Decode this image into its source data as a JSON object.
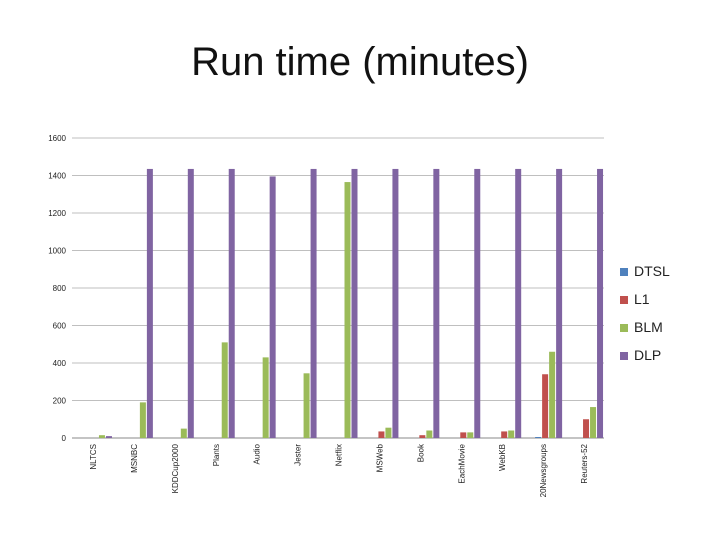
{
  "chart_data": {
    "type": "bar",
    "title": "Run time (minutes)",
    "xlabel": "",
    "ylabel": "",
    "ylim": [
      0,
      1600
    ],
    "yticks": [
      0,
      200,
      400,
      600,
      800,
      1000,
      1200,
      1400,
      1600
    ],
    "grid": true,
    "legend_position": "right",
    "categories": [
      "NLTCS",
      "MSNBC",
      "KDDCup2000",
      "Plants",
      "Audio",
      "Jester",
      "Netflix",
      "MSWeb",
      "Book",
      "EachMovie",
      "WebKB",
      "20Newsgroups",
      "Reuters-52"
    ],
    "series": [
      {
        "name": "DTSL",
        "color": "#4f81bd",
        "values": [
          0,
          0,
          0,
          0,
          0,
          0,
          0,
          0,
          0,
          0,
          0,
          5,
          0
        ]
      },
      {
        "name": "L1",
        "color": "#c0504d",
        "values": [
          0,
          0,
          0,
          0,
          0,
          0,
          0,
          35,
          15,
          30,
          35,
          340,
          100
        ]
      },
      {
        "name": "BLM",
        "color": "#9bbb59",
        "values": [
          15,
          190,
          50,
          510,
          430,
          345,
          1365,
          55,
          40,
          30,
          40,
          460,
          165
        ]
      },
      {
        "name": "DLP",
        "color": "#8064a2",
        "values": [
          10,
          1435,
          1435,
          1435,
          1395,
          1435,
          1435,
          1435,
          1435,
          1435,
          1435,
          1435,
          1435
        ]
      }
    ]
  }
}
